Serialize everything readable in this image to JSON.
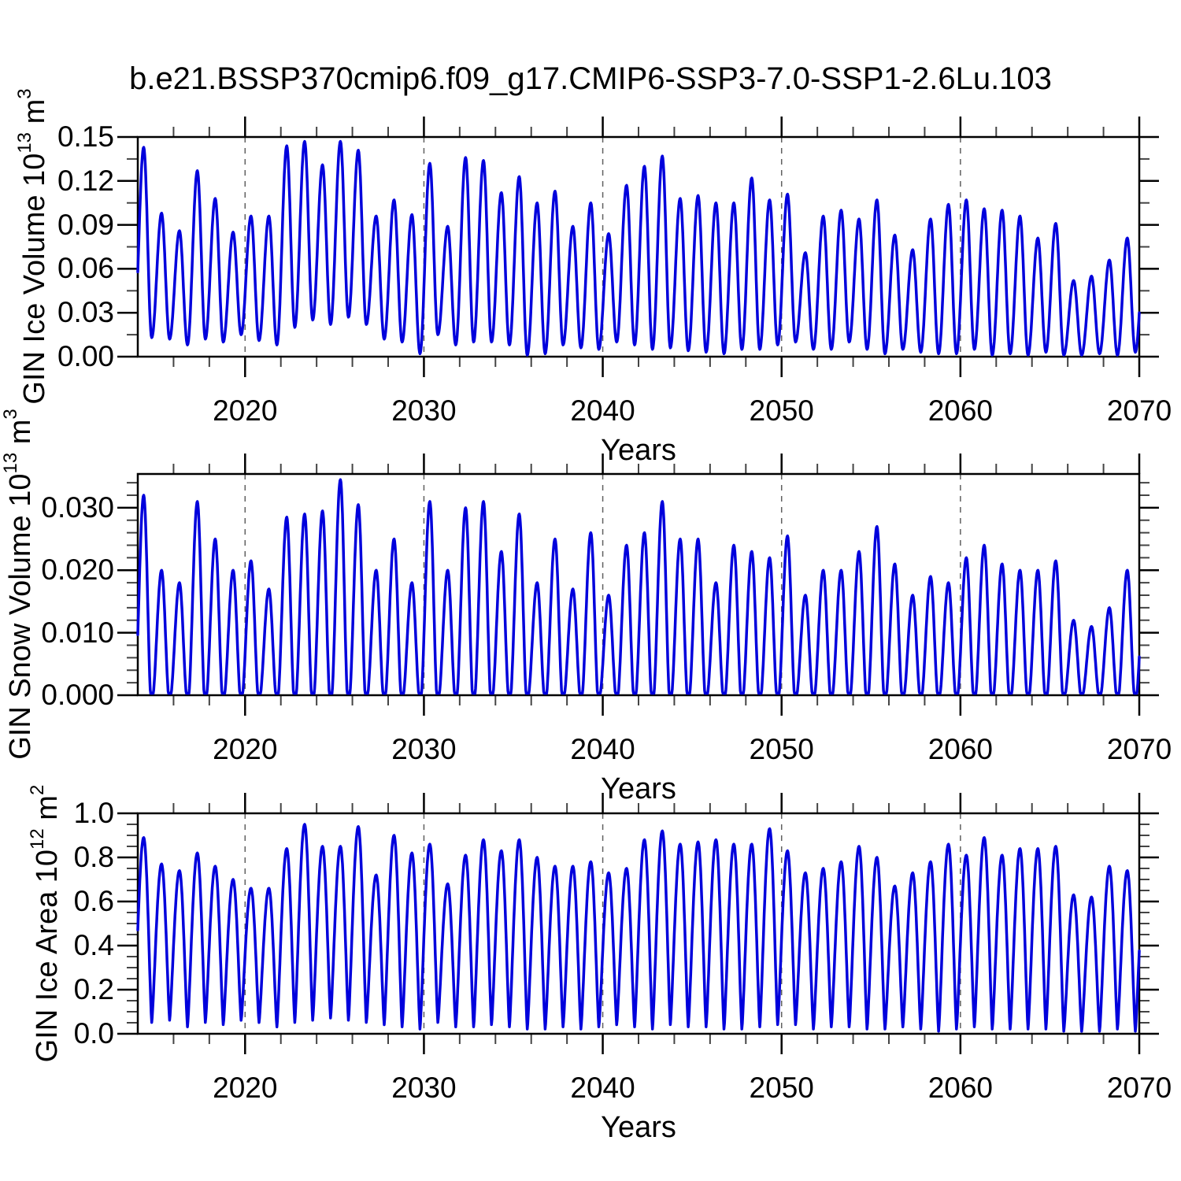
{
  "title": "b.e21.BSSP370cmip6.f09_g17.CMIP6-SSP3-7.0-SSP1-2.6Lu.103",
  "line_color": "#0000dc",
  "gridline_color": "#606060",
  "x_axis": {
    "label": "Years",
    "range": [
      2014,
      2070
    ],
    "tick_years": [
      2020,
      2030,
      2040,
      2050,
      2060,
      2070
    ],
    "tick_labels": [
      "2020",
      "2030",
      "2040",
      "2050",
      "2060",
      "2070"
    ],
    "minor_step_years": 2,
    "gridline_years": [
      2020,
      2030,
      2040,
      2050,
      2060
    ]
  },
  "chart_data": [
    {
      "type": "line",
      "name": "GIN Ice Volume",
      "ylabel_base": "GIN Ice Volume 10",
      "ylabel_exp": "13",
      "ylabel_unit": " m",
      "ylabel_unit_exp": "3",
      "ymax": 0.15,
      "ytick_values": [
        0.0,
        0.03,
        0.06,
        0.09,
        0.12,
        0.15
      ],
      "ytick_labels": [
        "0.00",
        "0.03",
        "0.06",
        "0.09",
        "0.12",
        "0.15"
      ],
      "y_major_step": 0.03,
      "y_minor_step": 0.015,
      "seasonality": "annual cycle, peak near April, minimum near September",
      "years": [
        2014,
        2015,
        2016,
        2017,
        2018,
        2019,
        2020,
        2021,
        2022,
        2023,
        2024,
        2025,
        2026,
        2027,
        2028,
        2029,
        2030,
        2031,
        2032,
        2033,
        2034,
        2035,
        2036,
        2037,
        2038,
        2039,
        2040,
        2041,
        2042,
        2043,
        2044,
        2045,
        2046,
        2047,
        2048,
        2049,
        2050,
        2051,
        2052,
        2053,
        2054,
        2055,
        2056,
        2057,
        2058,
        2059,
        2060,
        2061,
        2062,
        2063,
        2064,
        2065,
        2066,
        2067,
        2068,
        2069
      ],
      "seasonal_peaks": [
        0.143,
        0.098,
        0.086,
        0.127,
        0.108,
        0.085,
        0.096,
        0.096,
        0.144,
        0.147,
        0.131,
        0.147,
        0.141,
        0.096,
        0.107,
        0.097,
        0.132,
        0.089,
        0.136,
        0.134,
        0.112,
        0.123,
        0.105,
        0.113,
        0.089,
        0.105,
        0.084,
        0.117,
        0.13,
        0.137,
        0.108,
        0.11,
        0.105,
        0.105,
        0.122,
        0.107,
        0.111,
        0.071,
        0.096,
        0.1,
        0.094,
        0.107,
        0.083,
        0.073,
        0.094,
        0.104,
        0.107,
        0.101,
        0.1,
        0.096,
        0.081,
        0.091,
        0.052,
        0.055,
        0.066,
        0.081
      ],
      "seasonal_troughs": [
        0.013,
        0.012,
        0.008,
        0.012,
        0.01,
        0.015,
        0.011,
        0.008,
        0.02,
        0.025,
        0.022,
        0.027,
        0.022,
        0.012,
        0.01,
        0.002,
        0.015,
        0.008,
        0.01,
        0.01,
        0.008,
        0.001,
        0.002,
        0.008,
        0.006,
        0.005,
        0.01,
        0.008,
        0.005,
        0.006,
        0.004,
        0.003,
        0.002,
        0.005,
        0.005,
        0.008,
        0.01,
        0.005,
        0.005,
        0.01,
        0.005,
        0.002,
        0.005,
        0.003,
        0.002,
        0.002,
        0.005,
        0.001,
        0.002,
        0.001,
        0.003,
        0.001,
        0.001,
        0.002,
        0.001,
        0.003
      ],
      "peak_phase": 0.33,
      "trough_phase": 0.78
    },
    {
      "type": "line",
      "name": "GIN Snow Volume",
      "ylabel_base": "GIN Snow Volume 10",
      "ylabel_exp": "13",
      "ylabel_unit": " m",
      "ylabel_unit_exp": "3",
      "ymax": 0.0354,
      "ytick_values": [
        0.0,
        0.01,
        0.02,
        0.03
      ],
      "ytick_labels": [
        "0.000",
        "0.010",
        "0.020",
        "0.030"
      ],
      "y_major_step": 0.01,
      "y_minor_step": 0.002,
      "seasonality": "annual cycle, peak near April, flat minimum at zero in late summer",
      "years": [
        2014,
        2015,
        2016,
        2017,
        2018,
        2019,
        2020,
        2021,
        2022,
        2023,
        2024,
        2025,
        2026,
        2027,
        2028,
        2029,
        2030,
        2031,
        2032,
        2033,
        2034,
        2035,
        2036,
        2037,
        2038,
        2039,
        2040,
        2041,
        2042,
        2043,
        2044,
        2045,
        2046,
        2047,
        2048,
        2049,
        2050,
        2051,
        2052,
        2053,
        2054,
        2055,
        2056,
        2057,
        2058,
        2059,
        2060,
        2061,
        2062,
        2063,
        2064,
        2065,
        2066,
        2067,
        2068,
        2069
      ],
      "seasonal_peaks": [
        0.032,
        0.02,
        0.018,
        0.031,
        0.025,
        0.02,
        0.0215,
        0.017,
        0.0285,
        0.029,
        0.0295,
        0.0345,
        0.0305,
        0.02,
        0.025,
        0.018,
        0.031,
        0.02,
        0.03,
        0.031,
        0.023,
        0.029,
        0.018,
        0.025,
        0.017,
        0.026,
        0.016,
        0.024,
        0.026,
        0.031,
        0.025,
        0.025,
        0.018,
        0.024,
        0.023,
        0.022,
        0.0255,
        0.016,
        0.02,
        0.02,
        0.023,
        0.027,
        0.021,
        0.016,
        0.019,
        0.018,
        0.022,
        0.024,
        0.021,
        0.02,
        0.02,
        0.0215,
        0.012,
        0.011,
        0.014,
        0.02
      ],
      "seasonal_troughs": [
        0.0003,
        0.0003,
        0.0003,
        0.0003,
        0.0003,
        0.0003,
        0.0003,
        0.0003,
        0.0003,
        0.0003,
        0.0003,
        0.0003,
        0.0003,
        0.0003,
        0.0003,
        0.0003,
        0.0003,
        0.0003,
        0.0003,
        0.0003,
        0.0003,
        0.0003,
        0.0003,
        0.0003,
        0.0003,
        0.0003,
        0.0003,
        0.0003,
        0.0003,
        0.0003,
        0.0003,
        0.0003,
        0.0003,
        0.0003,
        0.0003,
        0.0003,
        0.0003,
        0.0003,
        0.0003,
        0.0003,
        0.0003,
        0.0003,
        0.0003,
        0.0003,
        0.0003,
        0.0003,
        0.0003,
        0.0003,
        0.0003,
        0.0003,
        0.0003,
        0.0003,
        0.0003,
        0.0003,
        0.0003,
        0.0003
      ],
      "peak_phase": 0.33,
      "trough_phase": 0.78
    },
    {
      "type": "line",
      "name": "GIN Ice Area",
      "ylabel_base": "GIN Ice Area 10",
      "ylabel_exp": "12",
      "ylabel_unit": " m",
      "ylabel_unit_exp": "2",
      "ymax": 1.0,
      "ytick_values": [
        0.0,
        0.2,
        0.4,
        0.6,
        0.8,
        1.0
      ],
      "ytick_labels": [
        "0.0",
        "0.2",
        "0.4",
        "0.6",
        "0.8",
        "1.0"
      ],
      "y_major_step": 0.2,
      "y_minor_step": 0.05,
      "seasonality": "annual cycle, broad spring maximum, narrow late-summer minimum",
      "years": [
        2014,
        2015,
        2016,
        2017,
        2018,
        2019,
        2020,
        2021,
        2022,
        2023,
        2024,
        2025,
        2026,
        2027,
        2028,
        2029,
        2030,
        2031,
        2032,
        2033,
        2034,
        2035,
        2036,
        2037,
        2038,
        2039,
        2040,
        2041,
        2042,
        2043,
        2044,
        2045,
        2046,
        2047,
        2048,
        2049,
        2050,
        2051,
        2052,
        2053,
        2054,
        2055,
        2056,
        2057,
        2058,
        2059,
        2060,
        2061,
        2062,
        2063,
        2064,
        2065,
        2066,
        2067,
        2068,
        2069
      ],
      "seasonal_peaks": [
        0.89,
        0.77,
        0.74,
        0.82,
        0.76,
        0.7,
        0.66,
        0.66,
        0.84,
        0.95,
        0.85,
        0.85,
        0.94,
        0.72,
        0.9,
        0.82,
        0.86,
        0.68,
        0.81,
        0.88,
        0.83,
        0.88,
        0.8,
        0.76,
        0.76,
        0.78,
        0.73,
        0.75,
        0.88,
        0.92,
        0.86,
        0.87,
        0.88,
        0.86,
        0.86,
        0.93,
        0.83,
        0.73,
        0.75,
        0.78,
        0.85,
        0.8,
        0.67,
        0.73,
        0.78,
        0.86,
        0.81,
        0.89,
        0.81,
        0.84,
        0.84,
        0.85,
        0.63,
        0.62,
        0.76,
        0.74
      ],
      "seasonal_troughs": [
        0.05,
        0.06,
        0.03,
        0.05,
        0.04,
        0.06,
        0.05,
        0.03,
        0.05,
        0.06,
        0.07,
        0.06,
        0.05,
        0.04,
        0.03,
        0.02,
        0.05,
        0.03,
        0.03,
        0.04,
        0.03,
        0.02,
        0.02,
        0.03,
        0.02,
        0.03,
        0.04,
        0.03,
        0.02,
        0.04,
        0.03,
        0.03,
        0.02,
        0.02,
        0.03,
        0.04,
        0.04,
        0.02,
        0.03,
        0.03,
        0.02,
        0.02,
        0.03,
        0.02,
        0.01,
        0.02,
        0.03,
        0.02,
        0.02,
        0.02,
        0.02,
        0.01,
        0.01,
        0.01,
        0.02,
        0.01
      ],
      "peak_phase": 0.33,
      "trough_phase": 0.78
    }
  ]
}
